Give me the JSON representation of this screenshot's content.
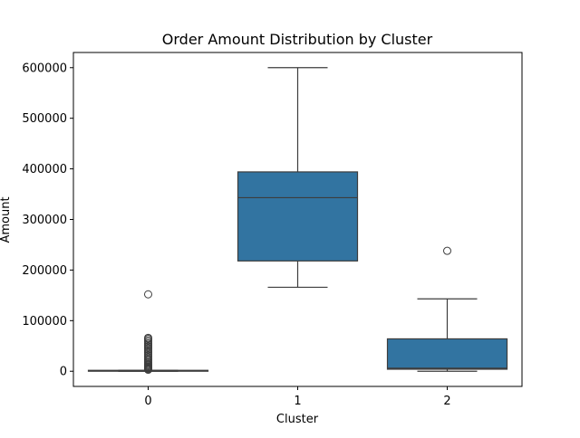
{
  "chart_data": {
    "type": "box",
    "title": "Order Amount Distribution by Cluster",
    "xlabel": "Cluster",
    "ylabel": "Amount",
    "ylim": [
      -30000,
      630000
    ],
    "yticks": [
      0,
      100000,
      200000,
      300000,
      400000,
      500000,
      600000
    ],
    "ytick_labels": [
      "0",
      "100000",
      "200000",
      "300000",
      "400000",
      "500000",
      "600000"
    ],
    "categories": [
      "0",
      "1",
      "2"
    ],
    "boxes": [
      {
        "category": "0",
        "q1": 200,
        "median": 600,
        "q3": 1800,
        "whisker_low": 0,
        "whisker_high": 1800,
        "outliers": [
          3000,
          4500,
          6000,
          7500,
          9000,
          11000,
          13000,
          15000,
          17500,
          20000,
          22500,
          25000,
          28000,
          31000,
          34000,
          37000,
          40000,
          43000,
          46000,
          49000,
          52000,
          55000,
          58000,
          61000,
          64000,
          66000,
          152000
        ]
      },
      {
        "category": "1",
        "q1": 218000,
        "median": 343000,
        "q3": 394000,
        "whisker_low": 166000,
        "whisker_high": 600000,
        "outliers": []
      },
      {
        "category": "2",
        "q1": 4000,
        "median": 6000,
        "q3": 64000,
        "whisker_low": 0,
        "whisker_high": 143000,
        "outliers": [
          238000
        ]
      }
    ],
    "box_color": "#3274a1",
    "line_color": "#3d3d3d",
    "grid": false,
    "legend": "none"
  }
}
